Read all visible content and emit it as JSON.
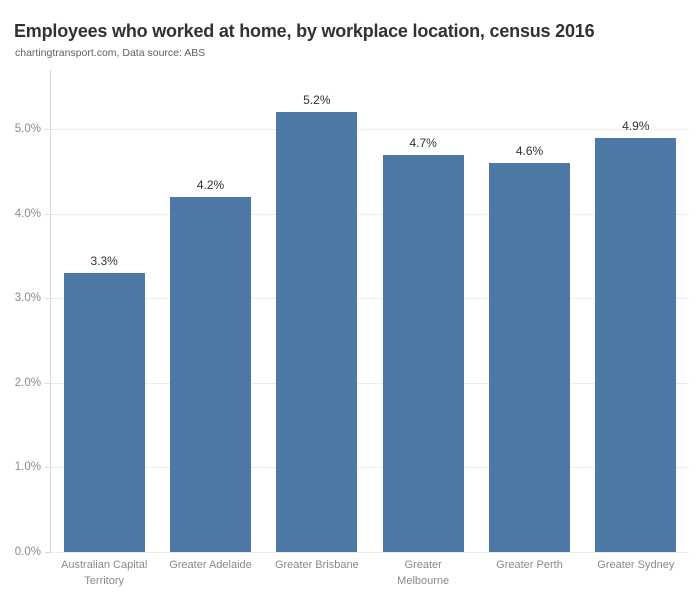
{
  "header": {
    "title": "Employees who worked at home, by workplace location, census 2016",
    "subtitle": "chartingtransport.com, Data source: ABS"
  },
  "colors": {
    "bar": "#4e79a7",
    "title_text": "#323232",
    "subtitle_text": "#5f5f5f",
    "axis_label": "#8a8a8a",
    "value_label": "#333333",
    "gridline": "#ededed",
    "axis_line": "#d9d9d9",
    "background": "#ffffff"
  },
  "chart_data": {
    "type": "bar",
    "title": "Employees who worked at home, by workplace location, census 2016",
    "subtitle": "chartingtransport.com, Data source: ABS",
    "categories": [
      "Australian Capital Territory",
      "Greater Adelaide",
      "Greater Brisbane",
      "Greater Melbourne",
      "Greater Perth",
      "Greater Sydney"
    ],
    "category_label_lines": [
      [
        "Australian Capital",
        "Territory"
      ],
      [
        "Greater Adelaide"
      ],
      [
        "Greater Brisbane"
      ],
      [
        "Greater",
        "Melbourne"
      ],
      [
        "Greater Perth"
      ],
      [
        "Greater Sydney"
      ]
    ],
    "values": [
      3.3,
      4.2,
      5.2,
      4.7,
      4.6,
      4.9
    ],
    "value_labels": [
      "3.3%",
      "4.2%",
      "5.2%",
      "4.7%",
      "4.6%",
      "4.9%"
    ],
    "xlabel": "",
    "ylabel": "",
    "ylim": [
      0,
      5.7
    ],
    "yticks": [
      0,
      1,
      2,
      3,
      4,
      5
    ],
    "ytick_labels": [
      "0.0%",
      "1.0%",
      "2.0%",
      "3.0%",
      "4.0%",
      "5.0%"
    ],
    "grid": true,
    "legend": "none",
    "bar_color": "#4e79a7"
  }
}
